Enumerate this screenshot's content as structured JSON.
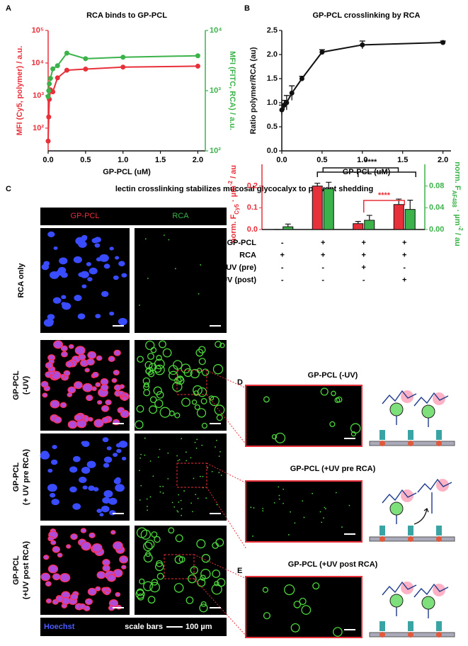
{
  "panel_labels": [
    "A",
    "B",
    "C",
    "D",
    "E"
  ],
  "chart_data": [
    {
      "type": "line",
      "title": "RCA binds to GP-PCL",
      "xlabel": "GP-PCL (uM)",
      "ylabel": "MFI (Cy5, polymer) / a.u.",
      "y2label": "MFI (FITC, RCA) / a.u.",
      "log_y": true,
      "log_y2": true,
      "color_axes": true,
      "x": [
        0,
        0.008,
        0.016,
        0.031,
        0.0625,
        0.125,
        0.25,
        0.5,
        1,
        2
      ],
      "series": [
        {
          "color": "#e8303a",
          "values": [
            40,
            220,
            770,
            1500,
            1300,
            3500,
            6000,
            6500,
            7500,
            8000
          ]
        },
        {
          "color": "#3cb34a",
          "axis": "y2",
          "values": [
            800,
            1000,
            1300,
            1600,
            2300,
            2600,
            4200,
            3400,
            3600,
            3800
          ]
        }
      ],
      "xlim": [
        0,
        2.1
      ],
      "xticks": [
        {
          "value": 0,
          "label": "0.0"
        },
        0.5,
        {
          "value": 1,
          "label": "1.0"
        },
        1.5,
        {
          "value": 2,
          "label": "2.0"
        }
      ],
      "ylim": [
        20,
        100000
      ],
      "yticks": [
        {
          "value": 100,
          "label": "10²"
        },
        {
          "value": 1000,
          "label": "10³"
        },
        {
          "value": 10000,
          "label": "10⁴"
        },
        {
          "value": 100000,
          "label": "10⁵"
        }
      ],
      "y2lim": [
        100,
        10000
      ],
      "y2ticks": [
        {
          "value": 100,
          "label": "10²"
        },
        {
          "value": 1000,
          "label": "10³"
        },
        {
          "value": 10000,
          "label": "10⁴"
        }
      ]
    },
    {
      "type": "line",
      "title": "GP-PCL crosslinking by RCA",
      "xlabel": "GP-PCL (uM)",
      "ylabel": "Ratio polymer/RCA (au)",
      "x": [
        0,
        0.03,
        0.06,
        0.125,
        0.25,
        0.5,
        1,
        2
      ],
      "series": [
        {
          "color": "#111111",
          "values": [
            0.85,
            0.95,
            1.0,
            1.2,
            1.5,
            2.05,
            2.2,
            2.25
          ],
          "errors": [
            0.1,
            0.1,
            0.15,
            0.15,
            0.05,
            0.05,
            0.08,
            0.03
          ]
        }
      ],
      "xlim": [
        0,
        2.1
      ],
      "xticks": [
        {
          "value": 0,
          "label": "0.0"
        },
        0.5,
        {
          "value": 1,
          "label": "1.0"
        },
        1.5,
        {
          "value": 2,
          "label": "2.0"
        }
      ],
      "ylim": [
        0,
        2.5
      ],
      "yticks": [
        {
          "value": 0,
          "label": "0.0"
        },
        0.5,
        {
          "value": 1,
          "label": "1.0"
        },
        1.5,
        {
          "value": 2,
          "label": "2.0"
        },
        2.5
      ]
    },
    {
      "type": "bar",
      "title": "lectin crosslinking stabilizes mucosal glycocalyx to prevent shedding",
      "ylabel_parts": [
        "norm. F",
        "Cy5",
        " · µm",
        "-2",
        " / au"
      ],
      "y2label_parts": [
        "norm. F",
        "AF488",
        " · µm",
        "-2",
        " / au"
      ],
      "categories": [
        null,
        null,
        null,
        null
      ],
      "series": [
        {
          "color": "#e8303a",
          "values": [
            0,
            0.2,
            0.027,
            0.115
          ],
          "errors": [
            0,
            0.013,
            0.01,
            0.025
          ]
        },
        {
          "color": "#3cb34a",
          "axis": "y2",
          "values": [
            0.005,
            0.075,
            0.017,
            0.037
          ],
          "errors": [
            0.005,
            0.012,
            0.009,
            0.017
          ]
        }
      ],
      "ylim": [
        0,
        0.3
      ],
      "yticks": [
        {
          "value": 0,
          "label": "0.0"
        },
        0.1,
        0.2
      ],
      "y2lim": [
        0,
        0.12
      ],
      "y2ticks": [
        {
          "value": 0,
          "label": "0.00"
        },
        0.04,
        0.08
      ],
      "significance": [
        {
          "label": "****",
          "color": "#111111"
        },
        {
          "label": "****",
          "color": "#e8303a"
        }
      ],
      "table": [
        {
          "label": "GP-PCL",
          "values": [
            "-",
            "+",
            "+",
            "+"
          ]
        },
        {
          "label": "RCA",
          "values": [
            "+",
            "+",
            "+",
            "+"
          ]
        },
        {
          "label": "UV (pre)",
          "values": [
            "-",
            "-",
            "+",
            "-"
          ]
        },
        {
          "label": "UV (post)",
          "values": [
            "-",
            "-",
            "-",
            "+"
          ]
        }
      ]
    }
  ],
  "micrographs": {
    "columns": [
      "GP-PCL",
      "RCA"
    ],
    "rows": [
      [
        "RCA only"
      ],
      [
        "GP-PCL",
        "(-UV)"
      ],
      [
        "GP-PCL",
        "(+ UV pre RCA)"
      ],
      [
        "GP-PCL",
        "(+UV post RCA)"
      ]
    ],
    "stain": "Hoechst",
    "scale_label": "scale bars",
    "scale_value": "100 µm"
  },
  "insets": [
    "GP-PCL (-UV)",
    "GP-PCL (+UV pre RCA)",
    "GP-PCL (+UV post RCA)"
  ]
}
